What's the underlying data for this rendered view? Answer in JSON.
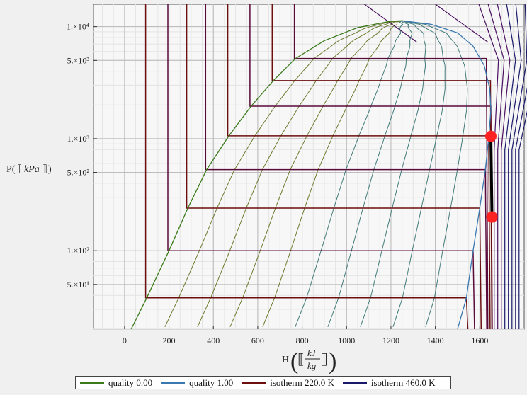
{
  "chart_data": {
    "type": "line",
    "title": "",
    "xlabel": "H",
    "xunit_num": "kJ",
    "xunit_den": "kg",
    "ylabel": "P(",
    "yunit": "kPa",
    "ylabel_close": ")",
    "xlim": [
      -140,
      1800
    ],
    "ylim_log10": [
      1.3,
      4.2
    ],
    "y_scale": "log",
    "grid": true,
    "x_ticks": [
      0,
      200,
      400,
      600,
      800,
      1000,
      1200,
      1400,
      1600
    ],
    "x_tick_labels": [
      "0",
      "200",
      "400",
      "600",
      "800",
      "1000",
      "1200",
      "1400",
      "1600"
    ],
    "y_ticks": [
      50,
      100,
      500,
      1000,
      5000,
      10000
    ],
    "y_tick_labels": [
      "5.×10¹",
      "1.×10²",
      "5.×10²",
      "1.×10³",
      "5.×10³",
      "1.×10⁴"
    ],
    "colors": {
      "quality_0": "#3b7a1a",
      "quality_1": "#3a78b0",
      "isotherm_low": "#6b0f0f",
      "isotherm_high": "#1a1a6b",
      "quality_mid": "#7a8a3a",
      "cycle": "#000000",
      "cycle_points": "#ff2222"
    },
    "critical_point": {
      "H": 1250,
      "P": 11300
    },
    "saturated_liquid": [
      {
        "H": 30,
        "P": 20
      },
      {
        "H": 100,
        "P": 38
      },
      {
        "H": 200,
        "P": 100
      },
      {
        "H": 285,
        "P": 240
      },
      {
        "H": 370,
        "P": 530
      },
      {
        "H": 470,
        "P": 1060
      },
      {
        "H": 570,
        "P": 1950
      },
      {
        "H": 670,
        "P": 3300
      },
      {
        "H": 770,
        "P": 5200
      },
      {
        "H": 900,
        "P": 7500
      },
      {
        "H": 1050,
        "P": 9800
      },
      {
        "H": 1200,
        "P": 11200
      },
      {
        "H": 1250,
        "P": 11300
      }
    ],
    "saturated_vapor": [
      {
        "H": 1250,
        "P": 11300
      },
      {
        "H": 1380,
        "P": 10500
      },
      {
        "H": 1500,
        "P": 8800
      },
      {
        "H": 1570,
        "P": 6700
      },
      {
        "H": 1620,
        "P": 4500
      },
      {
        "H": 1645,
        "P": 2800
      },
      {
        "H": 1650,
        "P": 1800
      },
      {
        "H": 1640,
        "P": 1000
      },
      {
        "H": 1625,
        "P": 530
      },
      {
        "H": 1600,
        "P": 240
      },
      {
        "H": 1570,
        "P": 100
      },
      {
        "H": 1540,
        "P": 38
      },
      {
        "H": 1500,
        "P": 20
      }
    ],
    "quality_lines": [
      0.1,
      0.2,
      0.3,
      0.4,
      0.5,
      0.6,
      0.7,
      0.8,
      0.9
    ],
    "isotherms_low": [
      {
        "P_sat": 38,
        "H_l": 100,
        "H_v": 1540
      },
      {
        "P_sat": 100,
        "H_l": 200,
        "H_v": 1570
      },
      {
        "P_sat": 240,
        "H_l": 285,
        "H_v": 1600
      },
      {
        "P_sat": 530,
        "H_l": 370,
        "H_v": 1625
      },
      {
        "P_sat": 1060,
        "H_l": 470,
        "H_v": 1640
      },
      {
        "P_sat": 1950,
        "H_l": 570,
        "H_v": 1650
      },
      {
        "P_sat": 3300,
        "H_l": 670,
        "H_v": 1648
      },
      {
        "P_sat": 5200,
        "H_l": 770,
        "H_v": 1630
      }
    ],
    "cycle_points": [
      {
        "H": 1650,
        "P": 1050
      },
      {
        "H": 1655,
        "P": 200
      }
    ],
    "legend": [
      {
        "label": "quality 0.00",
        "color": "#3b7a1a"
      },
      {
        "label": "quality 1.00",
        "color": "#3a78b0"
      },
      {
        "label": "isotherm 220.0 K",
        "color": "#6b0f0f"
      },
      {
        "label": "isotherm 460.0 K",
        "color": "#1a1a6b"
      }
    ]
  }
}
